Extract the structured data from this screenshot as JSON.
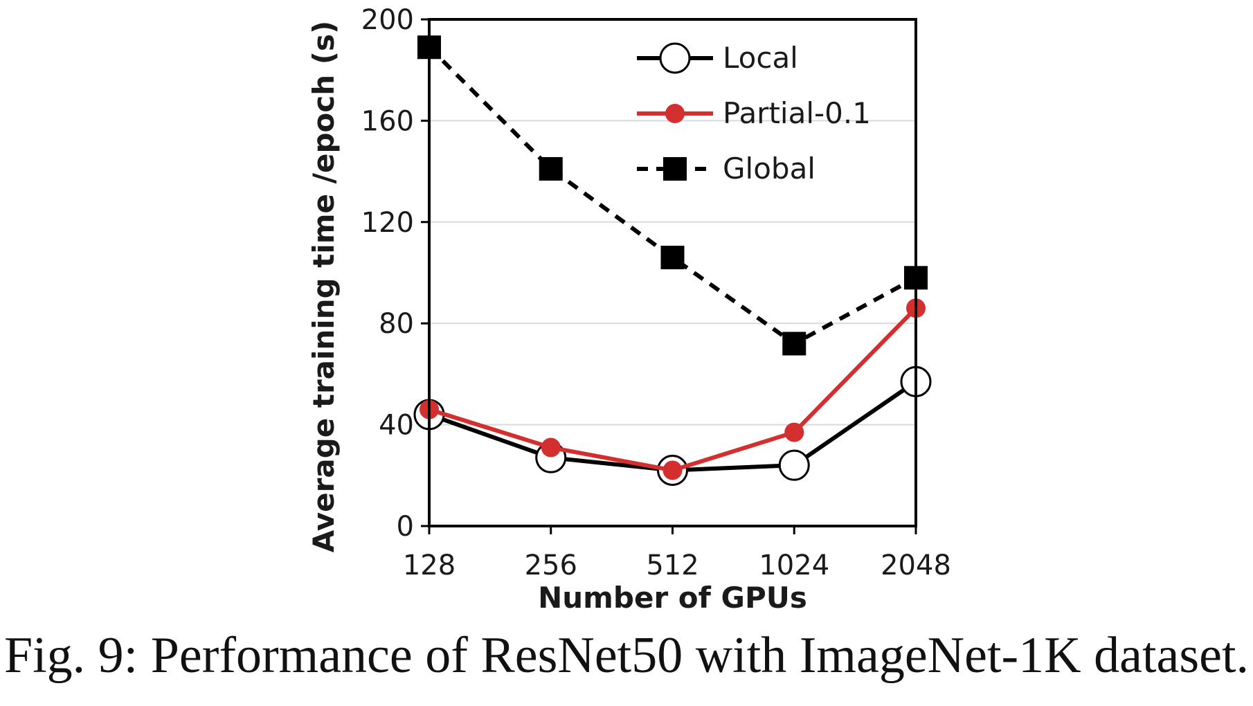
{
  "caption": "Fig. 9: Performance of ResNet50 with ImageNet-1K dataset.",
  "chart_data": {
    "type": "line",
    "categories": [
      "128",
      "256",
      "512",
      "1024",
      "2048"
    ],
    "xlabel": "Number of GPUs",
    "ylabel": "Average training time /epoch (s)",
    "ylim": [
      0,
      200
    ],
    "yticks": [
      0,
      40,
      80,
      120,
      160,
      200
    ],
    "grid": true,
    "legend": "top-right",
    "series": [
      {
        "name": "Local",
        "values": [
          44,
          27,
          22,
          24,
          57
        ],
        "color": "#000000",
        "marker": "open-circle",
        "dash": "solid"
      },
      {
        "name": "Partial-0.1",
        "values": [
          46,
          31,
          22,
          37,
          86
        ],
        "color": "#d32f2f",
        "marker": "filled-circle",
        "dash": "solid"
      },
      {
        "name": "Global",
        "values": [
          189,
          141,
          106,
          72,
          98
        ],
        "color": "#000000",
        "marker": "filled-square",
        "dash": "dashed"
      }
    ]
  }
}
